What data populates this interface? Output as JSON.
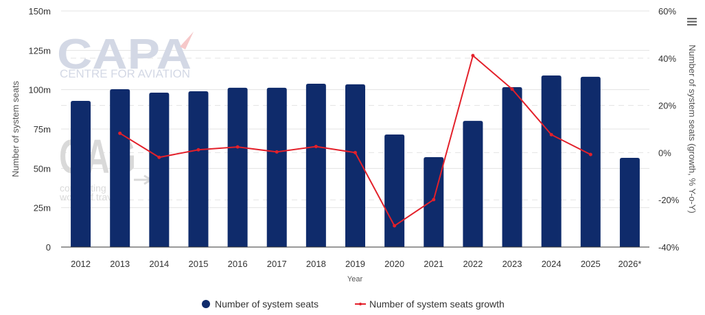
{
  "chart_data": {
    "type": "bar",
    "combo": "bar+line",
    "title": "",
    "xlabel": "Year",
    "ylabel_left": "Number of system seats",
    "ylabel_right": "Number of system seats (growth, % Y-o-Y)",
    "categories": [
      "2012",
      "2013",
      "2014",
      "2015",
      "2016",
      "2017",
      "2018",
      "2019",
      "2020",
      "2021",
      "2022",
      "2023",
      "2024",
      "2025",
      "2026*"
    ],
    "left_axis": {
      "min": 0,
      "max": 150,
      "unit": "m",
      "ticks": [
        0,
        25,
        50,
        75,
        100,
        125,
        150
      ],
      "tick_labels": [
        "0",
        "25m",
        "50m",
        "75m",
        "100m",
        "125m",
        "150m"
      ],
      "grid": true,
      "grid_style": "solid"
    },
    "right_axis": {
      "min": -40,
      "max": 60,
      "unit": "%",
      "ticks": [
        -40,
        -20,
        0,
        20,
        40,
        60
      ],
      "tick_labels": [
        "-40%",
        "-20%",
        "0%",
        "20%",
        "40%",
        "60%"
      ],
      "grid": true,
      "grid_style": "dashed"
    },
    "series": [
      {
        "name": "Number of system seats",
        "type": "bar",
        "axis": "left",
        "color": "#0f2b6b",
        "values": [
          92.9,
          100.3,
          98.1,
          99.0,
          101.2,
          101.2,
          103.8,
          103.4,
          71.5,
          57.1,
          80.2,
          101.6,
          109.0,
          108.2,
          56.7
        ]
      },
      {
        "name": "Number of system seats growth",
        "type": "line",
        "axis": "right",
        "color": "#e3202a",
        "values": [
          null,
          8.2,
          -2.0,
          1.2,
          2.4,
          0.3,
          2.6,
          0.0,
          -31.0,
          -19.9,
          41.1,
          26.9,
          7.6,
          -0.8,
          null
        ]
      }
    ],
    "legend": {
      "position": "bottom-center"
    }
  },
  "watermark": {
    "brand": "CAPA",
    "brand_sub": "CENTRE FOR AVIATION",
    "oag_letters": "OAG",
    "oag_line1": "connecting",
    "oag_line2": "world of travel"
  },
  "menu": {
    "icon": "hamburger-menu-icon"
  }
}
